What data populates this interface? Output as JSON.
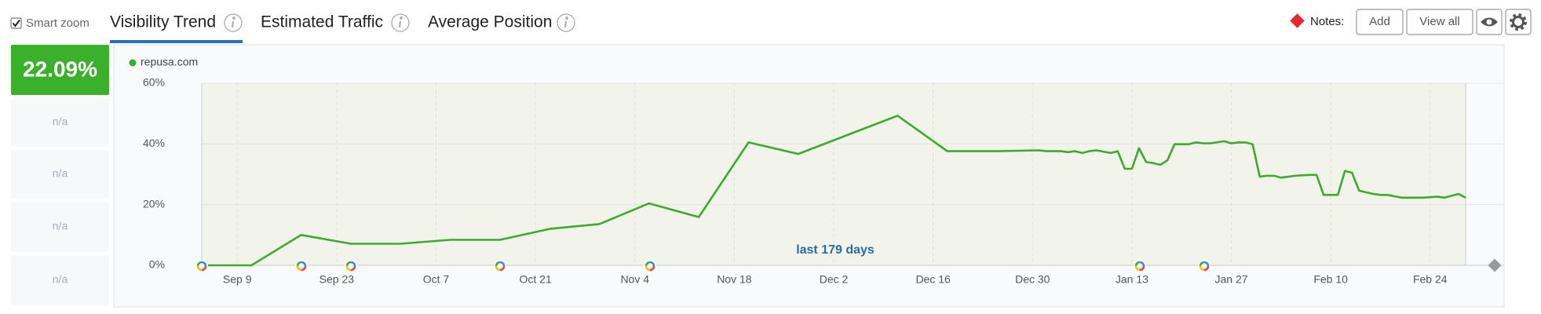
{
  "toolbar": {
    "smart_zoom": "Smart zoom",
    "tabs": [
      "Visibility Trend",
      "Estimated Traffic",
      "Average Position"
    ],
    "notes_label": "Notes:",
    "buttons": [
      "Add",
      "View all"
    ]
  },
  "sidebar": {
    "score": "22.09%",
    "cells": [
      "n/a",
      "n/a",
      "n/a",
      "n/a"
    ]
  },
  "chart_data": {
    "type": "line",
    "annotation": "last 179 days",
    "x": [
      "Sep 4",
      "Sep 11",
      "Sep 18",
      "Sep 25",
      "Oct 2",
      "Oct 9",
      "Oct 16",
      "Oct 23",
      "Oct 30",
      "Nov 6",
      "Nov 13",
      "Nov 20",
      "Nov 27",
      "Dec 11",
      "Dec 18",
      "Dec 25",
      "Dec 31",
      "Jan 1",
      "Jan 3",
      "Jan 4",
      "Jan 5",
      "Jan 6",
      "Jan 7",
      "Jan 8",
      "Jan 10",
      "Jan 11",
      "Jan 12",
      "Jan 13",
      "Jan 14",
      "Jan 15",
      "Jan 16",
      "Jan 17",
      "Jan 18",
      "Jan 19",
      "Jan 21",
      "Jan 22",
      "Jan 23",
      "Jan 24",
      "Jan 26",
      "Jan 27",
      "Jan 28",
      "Jan 29",
      "Jan 30",
      "Jan 31",
      "Feb 1",
      "Feb 2",
      "Feb 3",
      "Feb 5",
      "Feb 7",
      "Feb 8",
      "Feb 9",
      "Feb 11",
      "Feb 12",
      "Feb 13",
      "Feb 14",
      "Feb 16",
      "Feb 17",
      "Feb 18",
      "Feb 20",
      "Feb 23",
      "Feb 25",
      "Feb 26",
      "Feb 28",
      "Mar 1"
    ],
    "series": [
      {
        "name": "repusa.com",
        "color": "#3dab2b",
        "values": [
          0,
          0,
          10.0,
          7.1,
          7.1,
          8.4,
          8.4,
          12.0,
          13.6,
          20.4,
          15.9,
          40.5,
          36.7,
          49.3,
          37.6,
          37.6,
          37.9,
          37.6,
          37.6,
          37.3,
          37.6,
          37.0,
          37.6,
          37.9,
          37.0,
          37.6,
          31.8,
          31.8,
          38.6,
          34.0,
          33.7,
          33.1,
          34.6,
          39.9,
          39.9,
          40.5,
          40.2,
          40.2,
          40.9,
          40.2,
          40.5,
          40.5,
          39.9,
          29.2,
          29.5,
          29.5,
          28.9,
          29.5,
          29.8,
          29.8,
          23.2,
          23.2,
          31.1,
          30.5,
          24.6,
          23.5,
          23.2,
          23.2,
          22.3,
          22.3,
          22.6,
          22.3,
          23.5,
          22.3
        ]
      }
    ],
    "xlim": [
      "Sep 4",
      "Mar 1"
    ],
    "xticks": [
      "Sep 9",
      "Sep 23",
      "Oct 7",
      "Oct 21",
      "Nov 4",
      "Nov 18",
      "Dec 2",
      "Dec 16",
      "Dec 30",
      "Jan 13",
      "Jan 27",
      "Feb 10",
      "Feb 24"
    ],
    "ylim": [
      0,
      60
    ],
    "yticks": [
      {
        "value": 0,
        "label": "0%"
      },
      {
        "value": 20,
        "label": "20%"
      },
      {
        "value": 40,
        "label": "40%"
      },
      {
        "value": 60,
        "label": "60%"
      }
    ],
    "grid": true
  }
}
